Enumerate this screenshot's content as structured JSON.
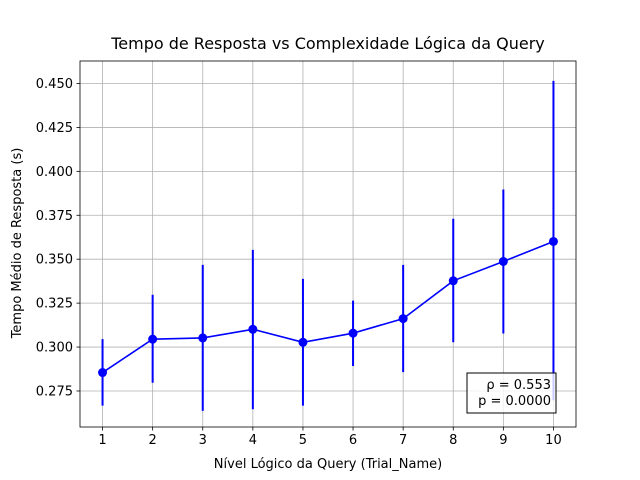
{
  "chart_data": {
    "type": "line",
    "title": "Tempo de Resposta vs Complexidade Lógica da Query",
    "xlabel": "Nível Lógico da Query (Trial_Name)",
    "ylabel": "Tempo Médio de Resposta (s)",
    "x": [
      1,
      2,
      3,
      4,
      5,
      6,
      7,
      8,
      9,
      10
    ],
    "xticks": [
      "1",
      "2",
      "3",
      "4",
      "5",
      "6",
      "7",
      "8",
      "9",
      "10"
    ],
    "yticks": [
      "0.275",
      "0.300",
      "0.325",
      "0.350",
      "0.375",
      "0.400",
      "0.425",
      "0.450"
    ],
    "ytick_values": [
      0.275,
      0.3,
      0.325,
      0.35,
      0.375,
      0.4,
      0.425,
      0.45
    ],
    "xlim": [
      0.55,
      10.45
    ],
    "ylim": [
      0.2545,
      0.4628
    ],
    "grid": true,
    "series": [
      {
        "values": [
          0.2855,
          0.3045,
          0.3052,
          0.3101,
          0.3027,
          0.3079,
          0.3162,
          0.3377,
          0.3487,
          0.3601
        ],
        "error_low": [
          0.2667,
          0.2797,
          0.2637,
          0.2646,
          0.2667,
          0.2892,
          0.2857,
          0.3027,
          0.3077,
          0.2697
        ],
        "error_high": [
          0.3045,
          0.3298,
          0.3468,
          0.3553,
          0.3388,
          0.3264,
          0.3468,
          0.373,
          0.3897,
          0.4515
        ],
        "color": "#0000ff"
      }
    ],
    "annotation": {
      "line1": "ρ = 0.553",
      "line2": "p = 0.0000",
      "placement": "bottom-right"
    }
  },
  "colors": {
    "series": "#0000ff",
    "grid": "#b0b0b0",
    "axes": "#000000",
    "background": "#ffffff"
  }
}
